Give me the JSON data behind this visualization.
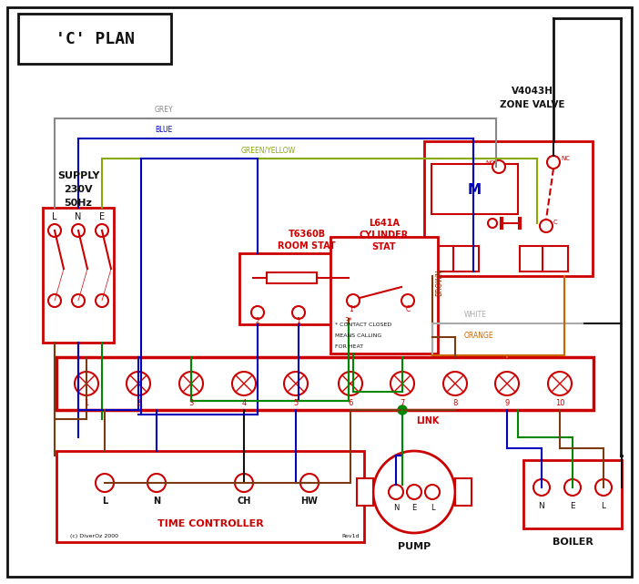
{
  "title": "'C' PLAN",
  "bg_color": "#ffffff",
  "red": "#cc0000",
  "blue": "#0000bb",
  "green": "#008800",
  "brown": "#7B3A10",
  "grey": "#888888",
  "orange": "#cc6600",
  "black": "#111111",
  "gy": "#88aa00",
  "white_w": "#aaaaaa",
  "supply_lines": [
    "SUPPLY",
    "230V",
    "50Hz"
  ],
  "time_ctrl_label": "TIME CONTROLLER",
  "pump_label": "PUMP",
  "boiler_label": "BOILER",
  "link_label": "LINK",
  "terminal_labels": [
    "1",
    "2",
    "3",
    "4",
    "5",
    "6",
    "7",
    "8",
    "9",
    "10"
  ],
  "copyright": "(c) DiverOz 2000",
  "rev": "Rev1d"
}
